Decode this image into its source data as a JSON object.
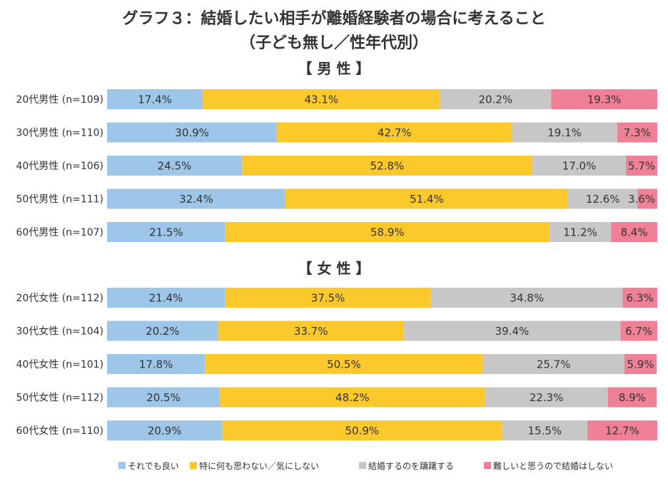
{
  "chart_data": {
    "type": "bar",
    "orientation": "horizontal",
    "stacked": true,
    "percent_stacked": true,
    "title": "グラフ３：結婚したい相手が離婚経験者の場合に考えること",
    "subtitle": "（子ども無し／性年代別）",
    "xlim": [
      0,
      100
    ],
    "grid": false,
    "legend_position": "bottom",
    "series": [
      {
        "name": "それでも良い",
        "color": "#9dc6e8"
      },
      {
        "name": "特に何も思わない／気にしない",
        "color": "#fcc92d"
      },
      {
        "name": "結婚するのを躊躇する",
        "color": "#c7c7c7"
      },
      {
        "name": "難しいと思うので結婚はしない",
        "color": "#ef8096"
      }
    ],
    "groups": [
      {
        "heading": "【 男 性 】",
        "rows": [
          {
            "label": "20代男性 (n=109)",
            "values": [
              17.4,
              43.1,
              20.2,
              19.3
            ],
            "value_labels": [
              "17.4%",
              "43.1%",
              "20.2%",
              "19.3%"
            ]
          },
          {
            "label": "30代男性 (n=110)",
            "values": [
              30.9,
              42.7,
              19.1,
              7.3
            ],
            "value_labels": [
              "30.9%",
              "42.7%",
              "19.1%",
              "7.3%"
            ]
          },
          {
            "label": "40代男性 (n=106)",
            "values": [
              24.5,
              52.8,
              17.0,
              5.7
            ],
            "value_labels": [
              "24.5%",
              "52.8%",
              "17.0%",
              "5.7%"
            ]
          },
          {
            "label": "50代男性 (n=111)",
            "values": [
              32.4,
              51.4,
              12.6,
              3.6
            ],
            "value_labels": [
              "32.4%",
              "51.4%",
              "12.6%",
              "3.6%"
            ]
          },
          {
            "label": "60代男性 (n=107)",
            "values": [
              21.5,
              58.9,
              11.2,
              8.4
            ],
            "value_labels": [
              "21.5%",
              "58.9%",
              "11.2%",
              "8.4%"
            ]
          }
        ]
      },
      {
        "heading": "【 女 性 】",
        "rows": [
          {
            "label": "20代女性 (n=112)",
            "values": [
              21.4,
              37.5,
              34.8,
              6.3
            ],
            "value_labels": [
              "21.4%",
              "37.5%",
              "34.8%",
              "6.3%"
            ]
          },
          {
            "label": "30代女性 (n=104)",
            "values": [
              20.2,
              33.7,
              39.4,
              6.7
            ],
            "value_labels": [
              "20.2%",
              "33.7%",
              "39.4%",
              "6.7%"
            ]
          },
          {
            "label": "40代女性 (n=101)",
            "values": [
              17.8,
              50.5,
              25.7,
              5.9
            ],
            "value_labels": [
              "17.8%",
              "50.5%",
              "25.7%",
              "5.9%"
            ]
          },
          {
            "label": "50代女性 (n=112)",
            "values": [
              20.5,
              48.2,
              22.3,
              8.9
            ],
            "value_labels": [
              "20.5%",
              "48.2%",
              "22.3%",
              "8.9%"
            ]
          },
          {
            "label": "60代女性 (n=110)",
            "values": [
              20.9,
              50.9,
              15.5,
              12.7
            ],
            "value_labels": [
              "20.9%",
              "50.9%",
              "15.5%",
              "12.7%"
            ]
          }
        ]
      }
    ]
  }
}
